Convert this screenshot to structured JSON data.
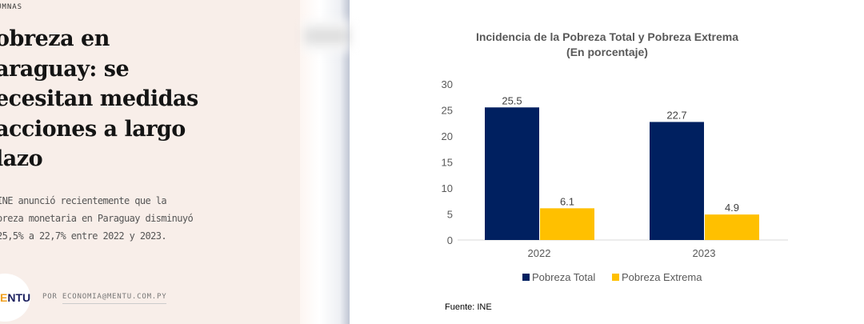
{
  "article": {
    "kicker": "UMNAS",
    "title": "obreza en araguay: se ecesitan medidas acciones a largo lazo",
    "title_lines": [
      "obreza en",
      "araguay: se",
      "ecesitan medidas",
      "acciones a largo",
      "lazo"
    ],
    "lead_lines": [
      "INE anunció recientemente que la",
      "oreza monetaria en Paraguay disminuyó",
      "25,5% a 22,7% entre 2022 y 2023."
    ],
    "logo_text": "ENTU",
    "byline_prefix": "POR",
    "byline_author": "ECONOMIA@MENTU.COM.PY"
  },
  "chart_data": {
    "type": "bar",
    "title": "Incidencia de la Pobreza Total y Pobreza Extrema",
    "subtitle": "(En porcentaje)",
    "categories": [
      "2022",
      "2023"
    ],
    "series": [
      {
        "name": "Pobreza Total",
        "values": [
          25.5,
          22.7
        ],
        "labels": [
          "25.5",
          "22.7"
        ],
        "color": "#002060"
      },
      {
        "name": "Pobreza Extrema",
        "values": [
          6.1,
          4.9
        ],
        "labels": [
          "6.1",
          "4.9"
        ],
        "color": "#ffc000"
      }
    ],
    "ylim": [
      0,
      30
    ],
    "yticks": [
      "0",
      "5",
      "10",
      "15",
      "20",
      "25",
      "30"
    ],
    "grid": false,
    "legend": "bottom",
    "source": "Fuente: INE"
  }
}
